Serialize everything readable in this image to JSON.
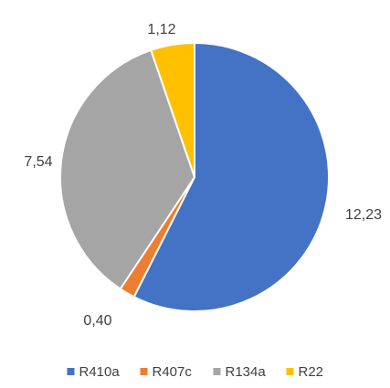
{
  "chart_data": {
    "type": "pie",
    "slices": [
      {
        "name": "R410a",
        "value": 12.23,
        "label": "12,23",
        "color": "#4472C4"
      },
      {
        "name": "R407c",
        "value": 0.4,
        "label": "0,40",
        "color": "#ED7D31"
      },
      {
        "name": "R134a",
        "value": 7.54,
        "label": "7,54",
        "color": "#A5A5A5"
      },
      {
        "name": "R22",
        "value": 1.12,
        "label": "1,12",
        "color": "#FFC000"
      }
    ],
    "title": "",
    "legend_position": "bottom",
    "start_angle_deg": 0,
    "direction": "clockwise"
  }
}
